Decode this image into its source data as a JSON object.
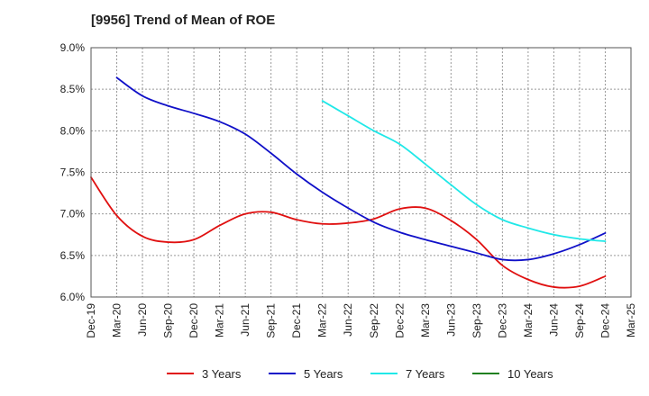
{
  "chart_data": {
    "type": "line",
    "title": "[9956]  Trend of Mean of ROE",
    "xlabel": "",
    "ylabel": "",
    "x_categories": [
      "Dec-19",
      "Mar-20",
      "Jun-20",
      "Sep-20",
      "Dec-20",
      "Mar-21",
      "Jun-21",
      "Sep-21",
      "Dec-21",
      "Mar-22",
      "Jun-22",
      "Sep-22",
      "Dec-22",
      "Mar-23",
      "Jun-23",
      "Sep-23",
      "Dec-23",
      "Mar-24",
      "Jun-24",
      "Sep-24",
      "Dec-24",
      "Mar-25"
    ],
    "y_ticks": [
      "6.0%",
      "6.5%",
      "7.0%",
      "7.5%",
      "8.0%",
      "8.5%",
      "9.0%"
    ],
    "ylim": [
      6.0,
      9.0
    ],
    "grid": true,
    "legend_position": "bottom",
    "series": [
      {
        "name": "3 Years",
        "color": "#e01010",
        "values": [
          7.44,
          6.98,
          6.73,
          6.66,
          6.69,
          6.86,
          7.0,
          7.02,
          6.93,
          6.88,
          6.89,
          6.94,
          7.06,
          7.07,
          6.92,
          6.69,
          6.38,
          6.21,
          6.12,
          6.13,
          6.25,
          null
        ]
      },
      {
        "name": "5 Years",
        "color": "#1010c8",
        "values": [
          null,
          8.64,
          8.42,
          8.3,
          8.21,
          8.11,
          7.96,
          7.73,
          7.48,
          7.26,
          7.07,
          6.9,
          6.78,
          6.69,
          6.61,
          6.53,
          6.45,
          6.45,
          6.52,
          6.63,
          6.77,
          null
        ]
      },
      {
        "name": "7 Years",
        "color": "#20e8e8",
        "values": [
          null,
          null,
          null,
          null,
          null,
          null,
          null,
          null,
          null,
          8.36,
          8.18,
          8.0,
          7.84,
          7.6,
          7.35,
          7.11,
          6.93,
          6.83,
          6.75,
          6.7,
          6.67,
          null
        ]
      },
      {
        "name": "10 Years",
        "color": "#208020",
        "values": [
          null,
          null,
          null,
          null,
          null,
          null,
          null,
          null,
          null,
          null,
          null,
          null,
          null,
          null,
          null,
          null,
          null,
          null,
          null,
          null,
          null,
          null
        ]
      }
    ]
  }
}
